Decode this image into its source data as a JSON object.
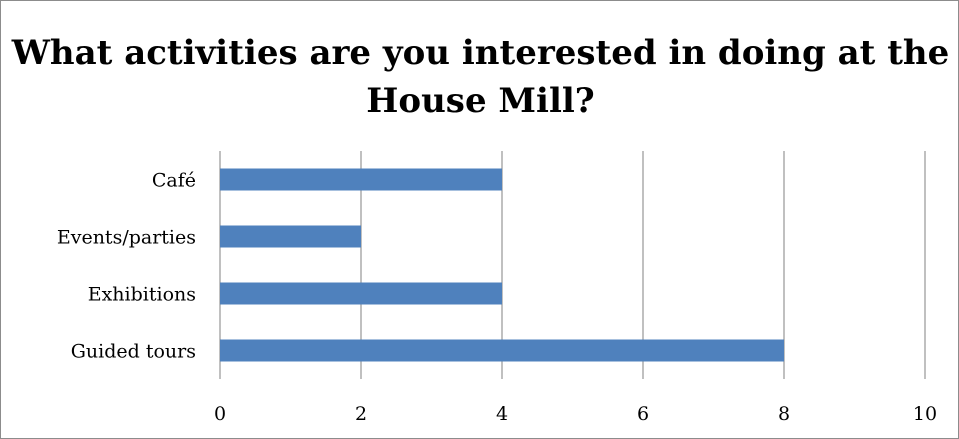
{
  "chart_data": {
    "type": "bar",
    "orientation": "horizontal",
    "title": "What activities are you interested in doing at the House Mill?",
    "categories": [
      "Café",
      "Events/parties",
      "Exhibitions",
      "Guided tours"
    ],
    "values": [
      4,
      2,
      4,
      8
    ],
    "xlim": [
      0,
      10
    ],
    "xticks": [
      "0",
      "2",
      "4",
      "6",
      "8",
      "10"
    ],
    "xlabel": "",
    "ylabel": "",
    "grid": true,
    "legend": "none",
    "bar_color": "#4f81bd",
    "grid_color": "#808080"
  }
}
